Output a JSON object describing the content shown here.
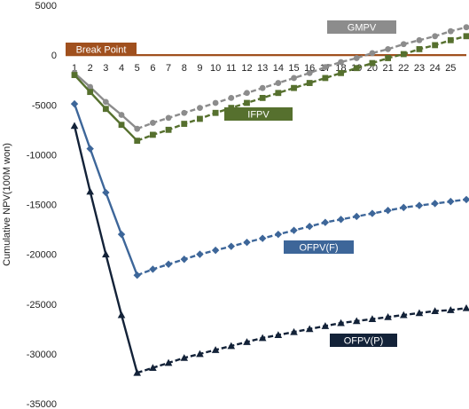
{
  "chart_data": {
    "type": "line",
    "title": "",
    "xlabel": "",
    "ylabel": "Cumulative NPV(100M won)",
    "ylim": [
      -35000,
      5000
    ],
    "yticks": [
      5000,
      0,
      -5000,
      -10000,
      -15000,
      -20000,
      -25000,
      -30000,
      -35000
    ],
    "xlim": [
      1,
      26
    ],
    "x": [
      1,
      2,
      3,
      4,
      5,
      6,
      7,
      8,
      9,
      10,
      11,
      12,
      13,
      14,
      15,
      16,
      17,
      18,
      19,
      20,
      21,
      22,
      23,
      24,
      25,
      26
    ],
    "xtick_labels": [
      "1",
      "2",
      "3",
      "4",
      "5",
      "6",
      "7",
      "8",
      "9",
      "10",
      "11",
      "12",
      "13",
      "14",
      "15",
      "16",
      "17",
      "18",
      "19",
      "20",
      "21",
      "22",
      "23",
      "24",
      "25"
    ],
    "grid": false,
    "break_point": {
      "label": "Break Point",
      "value": 0,
      "color": "#a0501e"
    },
    "series": [
      {
        "name": "GMPV",
        "color": "#8c8c8c",
        "marker": "circle",
        "values": [
          -1800,
          -3200,
          -4700,
          -6000,
          -7400,
          -6800,
          -6300,
          -5800,
          -5300,
          -4800,
          -4300,
          -3800,
          -3300,
          -2800,
          -2300,
          -1800,
          -1200,
          -700,
          -300,
          200,
          600,
          1100,
          1500,
          1900,
          2400,
          2800
        ]
      },
      {
        "name": "IFPV",
        "color": "#56702e",
        "marker": "square",
        "values": [
          -2000,
          -3700,
          -5400,
          -7000,
          -8600,
          -8000,
          -7500,
          -6900,
          -6400,
          -5800,
          -5300,
          -4800,
          -4300,
          -3800,
          -3300,
          -2800,
          -2300,
          -1800,
          -1300,
          -800,
          -300,
          100,
          600,
          1000,
          1500,
          1900
        ]
      },
      {
        "name": "OFPV(F)",
        "color": "#3d6699",
        "marker": "diamond",
        "values": [
          -4900,
          -9400,
          -13800,
          -18000,
          -22100,
          -21500,
          -21000,
          -20500,
          -20000,
          -19600,
          -19200,
          -18800,
          -18400,
          -18000,
          -17600,
          -17200,
          -16800,
          -16500,
          -16200,
          -15900,
          -15600,
          -15300,
          -15100,
          -14900,
          -14700,
          -14500
        ]
      },
      {
        "name": "OFPV(P)",
        "color": "#132238",
        "marker": "triangle",
        "values": [
          -7100,
          -13700,
          -20000,
          -26100,
          -31900,
          -31400,
          -30900,
          -30400,
          -30000,
          -29600,
          -29200,
          -28800,
          -28400,
          -28100,
          -27800,
          -27500,
          -27200,
          -26900,
          -26700,
          -26500,
          -26300,
          -26100,
          -25900,
          -25700,
          -25600,
          -25400
        ]
      }
    ]
  },
  "legend_tags": [
    {
      "series": "GMPV",
      "label": "GMPV",
      "bg": "#8c8c8c"
    },
    {
      "series": "IFPV",
      "label": "IFPV",
      "bg": "#56702e"
    },
    {
      "series": "OFPV(F)",
      "label": "OFPV(F)",
      "bg": "#3d6699"
    },
    {
      "series": "OFPV(P)",
      "label": "OFPV(P)",
      "bg": "#132238"
    }
  ]
}
